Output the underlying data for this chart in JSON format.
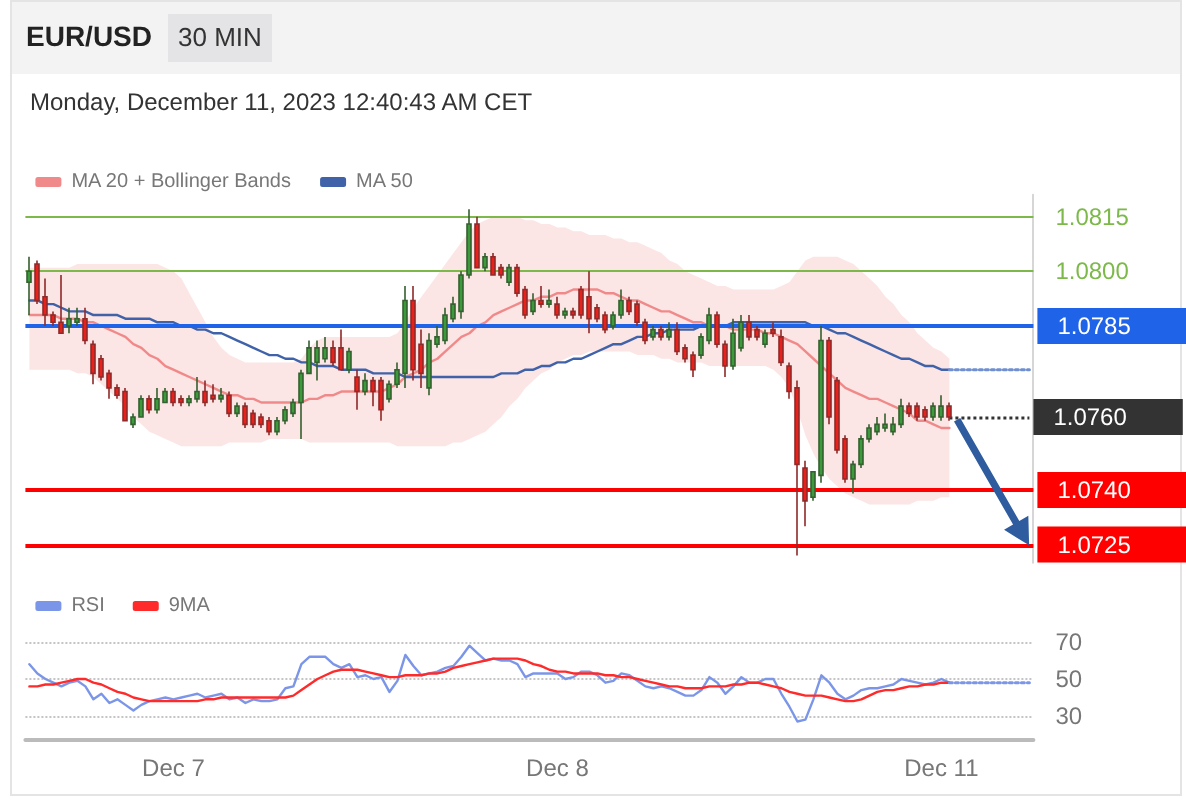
{
  "chart_data": [
    {
      "type": "candlestick",
      "title": "EUR/USD",
      "subtitle": "30 MIN",
      "annotations": [
        "Monday, December 11, 2023 12:40:43 AM CET"
      ],
      "categories": [
        null,
        null,
        null,
        null,
        null,
        null,
        null,
        null,
        null,
        null,
        null,
        null,
        null,
        null,
        null,
        null,
        null,
        null,
        null,
        null,
        null,
        null,
        null,
        null,
        null,
        null,
        null,
        null,
        null,
        null,
        null,
        null,
        null,
        null,
        null,
        null,
        null,
        null,
        null,
        null,
        null,
        null,
        null,
        null,
        null,
        null,
        null,
        null,
        null,
        null,
        null,
        null,
        null,
        null,
        null,
        null,
        null,
        null,
        null,
        null,
        null,
        null,
        null,
        null,
        null,
        null,
        null,
        null,
        null,
        null,
        null,
        null,
        null,
        null,
        null,
        null,
        null,
        null,
        null,
        null,
        null,
        null,
        null,
        null,
        null,
        null,
        null,
        null,
        null,
        null,
        null,
        null,
        null,
        null,
        null,
        null,
        null,
        null,
        null,
        null,
        null,
        null,
        null,
        null,
        null,
        null,
        null,
        null,
        null,
        null,
        null,
        null,
        null,
        null,
        null,
        null,
        null,
        null,
        null,
        null,
        null,
        null,
        null,
        null,
        null,
        null
      ],
      "ohlc": [
        [
          1.0797,
          1.0804,
          1.0788,
          1.08
        ],
        [
          1.0802,
          1.0803,
          1.0791,
          1.0792
        ],
        [
          1.0793,
          1.0798,
          1.0785,
          1.0788
        ],
        [
          1.0788,
          1.0789,
          1.0785,
          1.0786
        ],
        [
          1.0786,
          1.0799,
          1.0783,
          1.0783
        ],
        [
          1.0785,
          1.079,
          1.0783,
          1.0787
        ],
        [
          1.0786,
          1.079,
          1.0785,
          1.0787
        ],
        [
          1.0787,
          1.079,
          1.078,
          1.0781
        ],
        [
          1.078,
          1.0781,
          1.0769,
          1.0772
        ],
        [
          1.0776,
          1.0777,
          1.077,
          1.0771
        ],
        [
          1.0772,
          1.0773,
          1.0765,
          1.0768
        ],
        [
          1.0768,
          1.0769,
          1.0765,
          1.0766
        ],
        [
          1.0767,
          1.0768,
          1.0759,
          1.0759
        ],
        [
          1.0758,
          1.0761,
          1.0757,
          1.076
        ],
        [
          1.076,
          1.0766,
          1.076,
          1.0765
        ],
        [
          1.0765,
          1.0766,
          1.0761,
          1.0762
        ],
        [
          1.0762,
          1.0768,
          1.0761,
          1.0765
        ],
        [
          1.0764,
          1.0768,
          1.0764,
          1.0767
        ],
        [
          1.0767,
          1.0768,
          1.0763,
          1.0764
        ],
        [
          1.0765,
          1.0766,
          1.0763,
          1.0764
        ],
        [
          1.0764,
          1.0766,
          1.0763,
          1.0765
        ],
        [
          1.0765,
          1.0771,
          1.0764,
          1.0767
        ],
        [
          1.0767,
          1.077,
          1.0763,
          1.0764
        ],
        [
          1.0766,
          1.0769,
          1.0764,
          1.0765
        ],
        [
          1.0765,
          1.0768,
          1.0764,
          1.0766
        ],
        [
          1.0766,
          1.0767,
          1.076,
          1.0761
        ],
        [
          1.0761,
          1.0764,
          1.076,
          1.0763
        ],
        [
          1.0763,
          1.0764,
          1.0757,
          1.0758
        ],
        [
          1.0761,
          1.0762,
          1.0757,
          1.0758
        ],
        [
          1.076,
          1.0761,
          1.0757,
          1.0758
        ],
        [
          1.0759,
          1.076,
          1.0755,
          1.0756
        ],
        [
          1.0756,
          1.076,
          1.0755,
          1.0759
        ],
        [
          1.0759,
          1.0763,
          1.0758,
          1.0762
        ],
        [
          1.0761,
          1.0765,
          1.076,
          1.0764
        ],
        [
          1.0764,
          1.0773,
          1.0754,
          1.0772
        ],
        [
          1.0772,
          1.0781,
          1.0772,
          1.0779
        ],
        [
          1.0775,
          1.0781,
          1.077,
          1.0779
        ],
        [
          1.0776,
          1.0782,
          1.0775,
          1.0779
        ],
        [
          1.0779,
          1.0781,
          1.0774,
          1.0775
        ],
        [
          1.0779,
          1.0784,
          1.0773,
          1.0773
        ],
        [
          1.0773,
          1.0779,
          1.0772,
          1.0778
        ],
        [
          1.0771,
          1.0773,
          1.0762,
          1.0767
        ],
        [
          1.0767,
          1.0772,
          1.0766,
          1.077
        ],
        [
          1.077,
          1.0771,
          1.0763,
          1.0767
        ],
        [
          1.077,
          1.0771,
          1.0759,
          1.0762
        ],
        [
          1.0765,
          1.077,
          1.0764,
          1.0769
        ],
        [
          1.0769,
          1.0775,
          1.0768,
          1.0773
        ],
        [
          1.0772,
          1.0796,
          1.0768,
          1.0792
        ],
        [
          1.0792,
          1.0796,
          1.077,
          1.0773
        ],
        [
          1.078,
          1.0784,
          1.0768,
          1.0772
        ],
        [
          1.0768,
          1.0783,
          1.0766,
          1.0781
        ],
        [
          1.078,
          1.0785,
          1.0779,
          1.0782
        ],
        [
          1.0781,
          1.079,
          1.078,
          1.0788
        ],
        [
          1.0787,
          1.0793,
          1.0786,
          1.0791
        ],
        [
          1.0789,
          1.08,
          1.0787,
          1.0799
        ],
        [
          1.0799,
          1.0817,
          1.0798,
          1.0813
        ],
        [
          1.0813,
          1.0815,
          1.0801,
          1.0801
        ],
        [
          1.0801,
          1.0805,
          1.08,
          1.0804
        ],
        [
          1.0804,
          1.0805,
          1.0799,
          1.0799
        ],
        [
          1.0801,
          1.0802,
          1.0798,
          1.0799
        ],
        [
          1.0797,
          1.0802,
          1.0796,
          1.0801
        ],
        [
          1.0801,
          1.0802,
          1.0793,
          1.0794
        ],
        [
          1.0795,
          1.0796,
          1.0787,
          1.0788
        ],
        [
          1.0789,
          1.0794,
          1.0788,
          1.0792
        ],
        [
          1.0792,
          1.0796,
          1.079,
          1.0791
        ],
        [
          1.0791,
          1.0795,
          1.079,
          1.0792
        ],
        [
          1.0791,
          1.0793,
          1.0787,
          1.0788
        ],
        [
          1.0788,
          1.079,
          1.0787,
          1.0789
        ],
        [
          1.0789,
          1.079,
          1.0787,
          1.0788
        ],
        [
          1.0795,
          1.0796,
          1.0787,
          1.0788
        ],
        [
          1.0793,
          1.08,
          1.0783,
          1.0787
        ],
        [
          1.079,
          1.0791,
          1.0786,
          1.0787
        ],
        [
          1.0788,
          1.0789,
          1.0783,
          1.0784
        ],
        [
          1.0785,
          1.0789,
          1.0784,
          1.0788
        ],
        [
          1.0788,
          1.0795,
          1.0787,
          1.0792
        ],
        [
          1.0792,
          1.0793,
          1.0788,
          1.0789
        ],
        [
          1.0791,
          1.0792,
          1.0785,
          1.0786
        ],
        [
          1.0786,
          1.0787,
          1.078,
          1.0781
        ],
        [
          1.0782,
          1.0785,
          1.0781,
          1.0784
        ],
        [
          1.0784,
          1.0785,
          1.0781,
          1.0782
        ],
        [
          1.0782,
          1.0786,
          1.0781,
          1.0784
        ],
        [
          1.0784,
          1.0786,
          1.0777,
          1.0778
        ],
        [
          1.0779,
          1.078,
          1.0775,
          1.0776
        ],
        [
          1.0777,
          1.0778,
          1.0771,
          1.0773
        ],
        [
          1.0777,
          1.0783,
          1.0776,
          1.0782
        ],
        [
          1.0781,
          1.079,
          1.078,
          1.0788
        ],
        [
          1.0788,
          1.0789,
          1.0779,
          1.078
        ],
        [
          1.078,
          1.0781,
          1.0771,
          1.0774
        ],
        [
          1.0774,
          1.0787,
          1.0773,
          1.0783
        ],
        [
          1.0779,
          1.0788,
          1.0778,
          1.0786
        ],
        [
          1.0786,
          1.0788,
          1.0781,
          1.0782
        ],
        [
          1.0784,
          1.0785,
          1.0781,
          1.0782
        ],
        [
          1.078,
          1.0784,
          1.0779,
          1.0783
        ],
        [
          1.0784,
          1.0786,
          1.0782,
          1.0783
        ],
        [
          1.0782,
          1.0784,
          1.0774,
          1.0775
        ],
        [
          1.0774,
          1.0775,
          1.0765,
          1.0767
        ],
        [
          1.0768,
          1.077,
          1.0722,
          1.0747
        ],
        [
          1.0746,
          1.0748,
          1.073,
          1.0737
        ],
        [
          1.0738,
          1.0745,
          1.0737,
          1.0745
        ],
        [
          1.0744,
          1.0785,
          1.0742,
          1.0781
        ],
        [
          1.0781,
          1.0782,
          1.0758,
          1.076
        ],
        [
          1.077,
          1.0771,
          1.075,
          1.0751
        ],
        [
          1.0754,
          1.0755,
          1.0742,
          1.0743
        ],
        [
          1.0743,
          1.0748,
          1.0739,
          1.0747
        ],
        [
          1.0747,
          1.0755,
          1.0746,
          1.0754
        ],
        [
          1.0754,
          1.0758,
          1.0753,
          1.0757
        ],
        [
          1.0756,
          1.076,
          1.0755,
          1.0758
        ],
        [
          1.0757,
          1.0761,
          1.0756,
          1.0758
        ],
        [
          1.0756,
          1.076,
          1.0755,
          1.0758
        ],
        [
          1.0758,
          1.0765,
          1.0757,
          1.0763
        ],
        [
          1.0763,
          1.0764,
          1.076,
          1.0761
        ],
        [
          1.0763,
          1.0764,
          1.0759,
          1.076
        ],
        [
          1.0762,
          1.0763,
          1.0759,
          1.076
        ],
        [
          1.076,
          1.0764,
          1.0759,
          1.0763
        ],
        [
          1.076,
          1.0766,
          1.0759,
          1.0763
        ],
        [
          1.0763,
          1.0764,
          1.0759,
          1.076
        ],
        null,
        null,
        null,
        null,
        null,
        null,
        null,
        null,
        null,
        null
      ],
      "series": [
        {
          "name": "MA 20 + Bollinger Bands",
          "type": "line",
          "color": "#f08a8a",
          "values": [
            1.0788,
            1.0788,
            1.0788,
            1.0788,
            1.0787,
            1.0787,
            1.0787,
            1.0786,
            1.0786,
            1.0785,
            1.0784,
            1.0783,
            1.0782,
            1.078,
            1.0779,
            1.0777,
            1.0776,
            1.0774,
            1.0773,
            1.0772,
            1.0771,
            1.077,
            1.0769,
            1.0768,
            1.0767,
            1.0766,
            1.0766,
            1.0765,
            1.0765,
            1.0764,
            1.0764,
            1.0764,
            1.0764,
            1.0764,
            1.0764,
            1.0765,
            1.0765,
            1.0766,
            1.0766,
            1.0767,
            1.0767,
            1.0767,
            1.0767,
            1.0767,
            1.0767,
            1.0768,
            1.0769,
            1.0771,
            1.0772,
            1.0773,
            1.0775,
            1.0776,
            1.0778,
            1.078,
            1.0782,
            1.0783,
            1.0785,
            1.0786,
            1.0788,
            1.0789,
            1.079,
            1.0791,
            1.0792,
            1.0792,
            1.0793,
            1.0793,
            1.0794,
            1.0794,
            1.0795,
            1.0795,
            1.0795,
            1.0795,
            1.0794,
            1.0794,
            1.0793,
            1.0792,
            1.0792,
            1.0791,
            1.079,
            1.0789,
            1.0789,
            1.0788,
            1.0787,
            1.0786,
            1.0786,
            1.0785,
            1.0785,
            1.0785,
            1.0784,
            1.0784,
            1.0784,
            1.0784,
            1.0783,
            1.0783,
            1.0782,
            1.0781,
            1.078,
            1.0778,
            1.0776,
            1.0774,
            1.0772,
            1.077,
            1.0768,
            1.0767,
            1.0766,
            1.0765,
            1.0765,
            1.0764,
            1.0763,
            1.0762,
            1.0761,
            1.0759,
            1.0759,
            1.0758,
            1.0757,
            1.0757,
            null,
            null,
            null,
            null,
            null,
            null,
            null,
            null,
            null,
            null
          ],
          "upper": [
            1.0801,
            1.0801,
            1.0801,
            1.0801,
            1.0801,
            1.0801,
            1.0802,
            1.0802,
            1.0802,
            1.0802,
            1.0802,
            1.0802,
            1.0802,
            1.0802,
            1.0802,
            1.0802,
            1.0802,
            1.0801,
            1.08,
            1.0798,
            1.0794,
            1.079,
            1.0786,
            1.0782,
            1.0779,
            1.0777,
            1.0776,
            1.0775,
            1.0775,
            1.0775,
            1.0775,
            1.0775,
            1.0775,
            1.0775,
            1.0776,
            1.0779,
            1.0781,
            1.0782,
            1.0782,
            1.0782,
            1.0782,
            1.0782,
            1.0782,
            1.0782,
            1.0782,
            1.0782,
            1.0783,
            1.0786,
            1.079,
            1.0793,
            1.0796,
            1.0799,
            1.0802,
            1.0805,
            1.0808,
            1.0811,
            1.0813,
            1.0814,
            1.0815,
            1.0815,
            1.0815,
            1.0815,
            1.0814,
            1.0814,
            1.0813,
            1.0813,
            1.0812,
            1.0812,
            1.0811,
            1.0811,
            1.081,
            1.081,
            1.081,
            1.0809,
            1.0809,
            1.0808,
            1.0808,
            1.0807,
            1.0806,
            1.0805,
            1.0803,
            1.0802,
            1.08,
            1.0799,
            1.0798,
            1.0797,
            1.0796,
            1.0796,
            1.0795,
            1.0795,
            1.0795,
            1.0795,
            1.0795,
            1.0795,
            1.0796,
            1.0797,
            1.08,
            1.0803,
            1.0804,
            1.0804,
            1.0804,
            1.0804,
            1.0803,
            1.0802,
            1.08,
            1.0798,
            1.0796,
            1.0793,
            1.0791,
            1.0788,
            1.0786,
            1.0783,
            1.0781,
            1.0779,
            1.0778,
            1.0776,
            null,
            null,
            null,
            null,
            null,
            null,
            null,
            null,
            null,
            null
          ],
          "lower": [
            1.0773,
            1.0773,
            1.0773,
            1.0773,
            1.0773,
            1.0773,
            1.0772,
            1.0772,
            1.0771,
            1.0769,
            1.0767,
            1.0765,
            1.0763,
            1.076,
            1.0758,
            1.0756,
            1.0755,
            1.0754,
            1.0753,
            1.0752,
            1.0752,
            1.0752,
            1.0752,
            1.0752,
            1.0752,
            1.0753,
            1.0753,
            1.0753,
            1.0753,
            1.0753,
            1.0754,
            1.0754,
            1.0754,
            1.0754,
            1.0754,
            1.0753,
            1.0753,
            1.0753,
            1.0753,
            1.0753,
            1.0753,
            1.0753,
            1.0753,
            1.0753,
            1.0753,
            1.0753,
            1.0752,
            1.0752,
            1.0752,
            1.0752,
            1.0752,
            1.0752,
            1.0752,
            1.0753,
            1.0753,
            1.0754,
            1.0755,
            1.0756,
            1.0758,
            1.076,
            1.0763,
            1.0765,
            1.0768,
            1.077,
            1.0772,
            1.0773,
            1.0775,
            1.0776,
            1.0777,
            1.0777,
            1.0778,
            1.0778,
            1.0778,
            1.0778,
            1.0778,
            1.0778,
            1.0777,
            1.0777,
            1.0777,
            1.0776,
            1.0776,
            1.0775,
            1.0775,
            1.0775,
            1.0775,
            1.0774,
            1.0774,
            1.0774,
            1.0774,
            1.0774,
            1.0774,
            1.0774,
            1.0774,
            1.0773,
            1.0771,
            1.0768,
            1.0762,
            1.0755,
            1.075,
            1.0746,
            1.0743,
            1.0741,
            1.0739,
            1.0738,
            1.0737,
            1.0736,
            1.0736,
            1.0736,
            1.0736,
            1.0736,
            1.0736,
            1.0737,
            1.0737,
            1.0737,
            1.0738,
            1.0738,
            null,
            null,
            null,
            null,
            null,
            null,
            null,
            null,
            null,
            null
          ]
        },
        {
          "name": "MA 50",
          "type": "line",
          "color": "#3f62a8",
          "values": [
            1.0792,
            1.0792,
            1.0791,
            1.0791,
            1.079,
            1.0789,
            1.0789,
            1.0789,
            1.0788,
            1.0788,
            1.0788,
            1.0788,
            1.0787,
            1.0787,
            1.0787,
            1.0787,
            1.0786,
            1.0786,
            1.0786,
            1.0785,
            1.0785,
            1.0784,
            1.0784,
            1.0783,
            1.0783,
            1.0782,
            1.0781,
            1.078,
            1.0779,
            1.0778,
            1.0777,
            1.0777,
            1.0776,
            1.0776,
            1.0775,
            1.0775,
            1.0774,
            1.0774,
            1.0774,
            1.0773,
            1.0773,
            1.0773,
            1.0773,
            1.0772,
            1.0772,
            1.0772,
            1.0772,
            1.0771,
            1.0771,
            1.0771,
            1.0771,
            1.0771,
            1.0771,
            1.0771,
            1.0771,
            1.0771,
            1.0771,
            1.0771,
            1.0771,
            1.0772,
            1.0772,
            1.0772,
            1.0773,
            1.0773,
            1.0774,
            1.0774,
            1.0775,
            1.0775,
            1.0776,
            1.0776,
            1.0777,
            1.0778,
            1.0779,
            1.078,
            1.078,
            1.0781,
            1.0782,
            1.0782,
            1.0783,
            1.0783,
            1.0784,
            1.0784,
            1.0784,
            1.0784,
            1.0785,
            1.0785,
            1.0785,
            1.0785,
            1.0786,
            1.0786,
            1.0786,
            1.0786,
            1.0786,
            1.0786,
            1.0786,
            1.0786,
            1.0786,
            1.0786,
            1.0785,
            1.0785,
            1.0784,
            1.0783,
            1.0783,
            1.0782,
            1.0781,
            1.078,
            1.0779,
            1.0778,
            1.0777,
            1.0776,
            1.0776,
            1.0775,
            1.0774,
            1.0774,
            1.0773,
            1.0773,
            null,
            null,
            null,
            null,
            null,
            null,
            null,
            null,
            null,
            null
          ]
        },
        {
          "type": "line",
          "color": "#6f8fd0",
          "line_style": "dotted",
          "values": [
            null,
            null,
            null,
            null,
            null,
            null,
            null,
            null,
            null,
            null,
            null,
            null,
            null,
            null,
            null,
            null,
            null,
            null,
            null,
            null,
            null,
            null,
            null,
            null,
            null,
            null,
            null,
            null,
            null,
            null,
            null,
            null,
            null,
            null,
            null,
            null,
            null,
            null,
            null,
            null,
            null,
            null,
            null,
            null,
            null,
            null,
            null,
            null,
            null,
            null,
            null,
            null,
            null,
            null,
            null,
            null,
            null,
            null,
            null,
            null,
            null,
            null,
            null,
            null,
            null,
            null,
            null,
            null,
            null,
            null,
            null,
            null,
            null,
            null,
            null,
            null,
            null,
            null,
            null,
            null,
            null,
            null,
            null,
            null,
            null,
            null,
            null,
            null,
            null,
            null,
            null,
            null,
            null,
            null,
            null,
            null,
            null,
            null,
            null,
            null,
            null,
            null,
            null,
            null,
            null,
            null,
            null,
            null,
            null,
            null,
            null,
            null,
            null,
            null,
            null,
            1.0773,
            1.0773,
            1.0773,
            1.0773,
            1.0773,
            1.0773,
            1.0773,
            1.0773,
            1.0773,
            1.0773,
            1.0773
          ]
        }
      ],
      "ylim": [
        1.072,
        1.0821
      ],
      "legend": "top left",
      "tick_labels": false,
      "ref_lines": [
        {
          "axis": "y",
          "value": 1.0815,
          "label": "1.0815",
          "color": "#7cb94a"
        },
        {
          "axis": "y",
          "value": 1.08,
          "label": "1.0800",
          "color": "#7cb94a"
        },
        {
          "axis": "y",
          "value": 1.0785,
          "label": "1.0785",
          "color": "#1f63e8"
        },
        {
          "axis": "y",
          "value": 1.076,
          "label": "1.0760",
          "color": "#333333",
          "line_style": "dotted"
        },
        {
          "axis": "y",
          "value": 1.074,
          "label": "1.0740",
          "color": "#ff0000"
        },
        {
          "axis": "y",
          "value": 1.0725,
          "label": "1.0725",
          "color": "#ff0000"
        }
      ]
    },
    {
      "type": "line",
      "categories": [
        null,
        null,
        null,
        null,
        null,
        null,
        null,
        null,
        null,
        null,
        null,
        null,
        null,
        null,
        null,
        null,
        null,
        null,
        "Dec 7",
        null,
        null,
        null,
        null,
        null,
        null,
        null,
        null,
        null,
        null,
        null,
        null,
        null,
        null,
        null,
        null,
        null,
        null,
        null,
        null,
        null,
        null,
        null,
        null,
        null,
        null,
        null,
        null,
        null,
        null,
        null,
        null,
        null,
        null,
        null,
        null,
        null,
        null,
        null,
        null,
        null,
        null,
        null,
        null,
        null,
        null,
        null,
        "Dec 8",
        null,
        null,
        null,
        null,
        null,
        null,
        null,
        null,
        null,
        null,
        null,
        null,
        null,
        null,
        null,
        null,
        null,
        null,
        null,
        null,
        null,
        null,
        null,
        null,
        null,
        null,
        null,
        null,
        null,
        null,
        null,
        null,
        null,
        null,
        null,
        null,
        null,
        null,
        null,
        null,
        null,
        null,
        null,
        null,
        null,
        null,
        null,
        "Dec 11",
        null,
        null,
        null,
        null,
        null,
        null,
        null,
        null,
        null,
        null,
        null
      ],
      "series": [
        {
          "name": "RSI",
          "color": "#7b96e8",
          "values": [
            58,
            53,
            50,
            48,
            46,
            48,
            49,
            46,
            39,
            42,
            37,
            39,
            36,
            33,
            36,
            38,
            39,
            40,
            39,
            40,
            41,
            42,
            40,
            41,
            42,
            39,
            40,
            37,
            39,
            38,
            38,
            39,
            45,
            46,
            58,
            62,
            62,
            62,
            58,
            56,
            58,
            51,
            52,
            50,
            51,
            43,
            49,
            63,
            57,
            52,
            53,
            54,
            56,
            57,
            62,
            68,
            64,
            60,
            61,
            60,
            60,
            58,
            51,
            53,
            53,
            53,
            53,
            50,
            51,
            54,
            54,
            52,
            48,
            49,
            53,
            52,
            49,
            46,
            45,
            46,
            45,
            43,
            41,
            41,
            44,
            51,
            48,
            42,
            46,
            51,
            48,
            48,
            50,
            50,
            42,
            35,
            27,
            28,
            39,
            52,
            48,
            42,
            39,
            41,
            44,
            45,
            45,
            46,
            47,
            50,
            49,
            48,
            47,
            48,
            50,
            48,
            null,
            null,
            null,
            null,
            null,
            null,
            null,
            null,
            null,
            null
          ]
        },
        {
          "name": "9MA",
          "color": "#ff2a2a",
          "values": [
            46,
            46,
            47,
            47,
            48,
            49,
            50,
            50,
            48,
            47,
            45,
            43,
            42,
            40,
            39,
            38,
            38,
            38,
            38,
            38,
            38,
            38,
            39,
            39,
            40,
            40,
            40,
            40,
            40,
            40,
            40,
            40,
            40,
            41,
            44,
            47,
            50,
            52,
            54,
            55,
            55,
            55,
            54,
            53,
            52,
            51,
            51,
            52,
            52,
            52,
            53,
            53,
            54,
            56,
            57,
            58,
            59,
            60,
            61,
            61,
            61,
            61,
            60,
            58,
            57,
            55,
            54,
            54,
            53,
            53,
            53,
            53,
            52,
            52,
            51,
            51,
            50,
            49,
            48,
            47,
            46,
            46,
            45,
            45,
            45,
            46,
            46,
            46,
            47,
            47,
            48,
            48,
            47,
            46,
            45,
            43,
            42,
            41,
            41,
            41,
            40,
            39,
            38,
            38,
            39,
            41,
            43,
            44,
            44,
            45,
            46,
            46,
            47,
            47,
            48,
            48,
            null,
            null,
            null,
            null,
            null,
            null,
            null,
            null,
            null,
            null
          ]
        },
        {
          "color": "#7b96e8",
          "line_style": "dotted",
          "values": [
            null,
            null,
            null,
            null,
            null,
            null,
            null,
            null,
            null,
            null,
            null,
            null,
            null,
            null,
            null,
            null,
            null,
            null,
            null,
            null,
            null,
            null,
            null,
            null,
            null,
            null,
            null,
            null,
            null,
            null,
            null,
            null,
            null,
            null,
            null,
            null,
            null,
            null,
            null,
            null,
            null,
            null,
            null,
            null,
            null,
            null,
            null,
            null,
            null,
            null,
            null,
            null,
            null,
            null,
            null,
            null,
            null,
            null,
            null,
            null,
            null,
            null,
            null,
            null,
            null,
            null,
            null,
            null,
            null,
            null,
            null,
            null,
            null,
            null,
            null,
            null,
            null,
            null,
            null,
            null,
            null,
            null,
            null,
            null,
            null,
            null,
            null,
            null,
            null,
            null,
            null,
            null,
            null,
            null,
            null,
            null,
            null,
            null,
            null,
            null,
            null,
            null,
            null,
            null,
            null,
            null,
            null,
            null,
            null,
            null,
            null,
            null,
            null,
            null,
            null,
            48,
            48,
            48,
            48,
            48,
            48,
            48,
            48,
            48,
            48,
            48
          ]
        }
      ],
      "ylim": [
        17,
        70
      ],
      "yticks": [
        30,
        50,
        70
      ],
      "grid": "y",
      "legend": "top left"
    }
  ]
}
